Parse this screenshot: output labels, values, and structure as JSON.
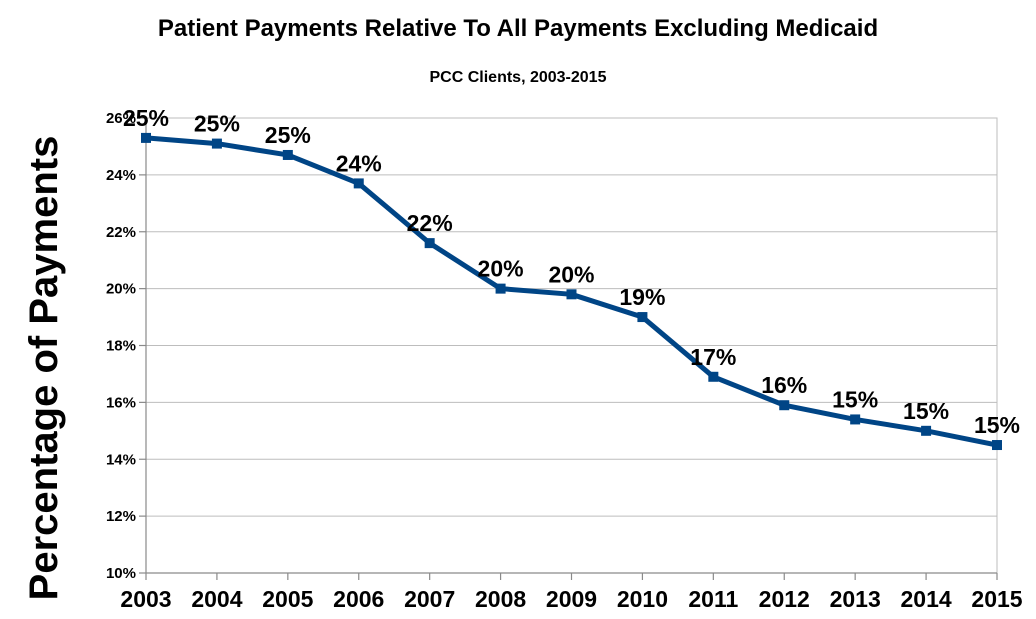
{
  "chart_data": {
    "type": "line",
    "title": "Patient Payments Relative To All Payments Excluding Medicaid",
    "subtitle": "PCC Clients, 2003-2015",
    "xlabel": "",
    "ylabel": "Percentage of Payments",
    "categories": [
      "2003",
      "2004",
      "2005",
      "2006",
      "2007",
      "2008",
      "2009",
      "2010",
      "2011",
      "2012",
      "2013",
      "2014",
      "2015"
    ],
    "series": [
      {
        "values": [
          25.3,
          25.1,
          24.7,
          23.7,
          21.6,
          20.0,
          19.8,
          19.0,
          16.9,
          15.9,
          15.4,
          15.0,
          14.5
        ],
        "labels": [
          "25%",
          "25%",
          "25%",
          "24%",
          "22%",
          "20%",
          "20%",
          "19%",
          "17%",
          "16%",
          "15%",
          "15%",
          "15%"
        ],
        "color": "#004586"
      }
    ],
    "ylim": [
      10,
      26
    ],
    "yticks": [
      "10%",
      "12%",
      "14%",
      "16%",
      "18%",
      "20%",
      "22%",
      "24%",
      "26%"
    ],
    "grid": true,
    "legend": "none"
  }
}
